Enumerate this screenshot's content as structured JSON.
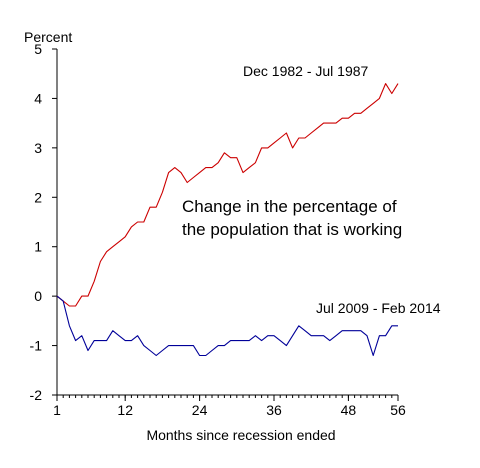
{
  "chart_data": {
    "type": "line",
    "ylabel": "Percent",
    "xlabel": "Months since recession ended",
    "annotation": "Change in the percentage of the population that is working",
    "annotation_lines": [
      "Change in the percentage of",
      "the population that is working"
    ],
    "xlim": [
      1,
      56
    ],
    "ylim": [
      -2,
      5
    ],
    "x_ticks": [
      1,
      12,
      24,
      36,
      48,
      56
    ],
    "y_ticks": [
      -2,
      -1,
      0,
      1,
      2,
      3,
      4,
      5
    ],
    "grid": false,
    "legend": "none",
    "series": [
      {
        "name": "Dec 1982 - Jul 1987",
        "color": "#cc0000",
        "x": [
          1,
          2,
          3,
          4,
          5,
          6,
          7,
          8,
          9,
          10,
          11,
          12,
          13,
          14,
          15,
          16,
          17,
          18,
          19,
          20,
          21,
          22,
          23,
          24,
          25,
          26,
          27,
          28,
          29,
          30,
          31,
          32,
          33,
          34,
          35,
          36,
          37,
          38,
          39,
          40,
          41,
          42,
          43,
          44,
          45,
          46,
          47,
          48,
          49,
          50,
          51,
          52,
          53,
          54,
          55,
          56
        ],
        "values": [
          0.0,
          -0.1,
          -0.2,
          -0.2,
          0.0,
          0.0,
          0.3,
          0.7,
          0.9,
          1.0,
          1.1,
          1.2,
          1.4,
          1.5,
          1.5,
          1.8,
          1.8,
          2.1,
          2.5,
          2.6,
          2.5,
          2.3,
          2.4,
          2.5,
          2.6,
          2.6,
          2.7,
          2.9,
          2.8,
          2.8,
          2.5,
          2.6,
          2.7,
          3.0,
          3.0,
          3.1,
          3.2,
          3.3,
          3.0,
          3.2,
          3.2,
          3.3,
          3.4,
          3.5,
          3.5,
          3.5,
          3.6,
          3.6,
          3.7,
          3.7,
          3.8,
          3.9,
          4.0,
          4.3,
          4.1,
          4.3
        ]
      },
      {
        "name": "Jul 2009 - Feb 2014",
        "color": "#000099",
        "x": [
          1,
          2,
          3,
          4,
          5,
          6,
          7,
          8,
          9,
          10,
          11,
          12,
          13,
          14,
          15,
          16,
          17,
          18,
          19,
          20,
          21,
          22,
          23,
          24,
          25,
          26,
          27,
          28,
          29,
          30,
          31,
          32,
          33,
          34,
          35,
          36,
          37,
          38,
          39,
          40,
          41,
          42,
          43,
          44,
          45,
          46,
          47,
          48,
          49,
          50,
          51,
          52,
          53,
          54,
          55,
          56
        ],
        "values": [
          0.0,
          -0.1,
          -0.6,
          -0.9,
          -0.8,
          -1.1,
          -0.9,
          -0.9,
          -0.9,
          -0.7,
          -0.8,
          -0.9,
          -0.9,
          -0.8,
          -1.0,
          -1.1,
          -1.2,
          -1.1,
          -1.0,
          -1.0,
          -1.0,
          -1.0,
          -1.0,
          -1.2,
          -1.2,
          -1.1,
          -1.0,
          -1.0,
          -0.9,
          -0.9,
          -0.9,
          -0.9,
          -0.8,
          -0.9,
          -0.8,
          -0.8,
          -0.9,
          -1.0,
          -0.8,
          -0.6,
          -0.7,
          -0.8,
          -0.8,
          -0.8,
          -0.9,
          -0.8,
          -0.7,
          -0.7,
          -0.7,
          -0.7,
          -0.8,
          -1.2,
          -0.8,
          -0.8,
          -0.6,
          -0.6
        ]
      }
    ]
  }
}
